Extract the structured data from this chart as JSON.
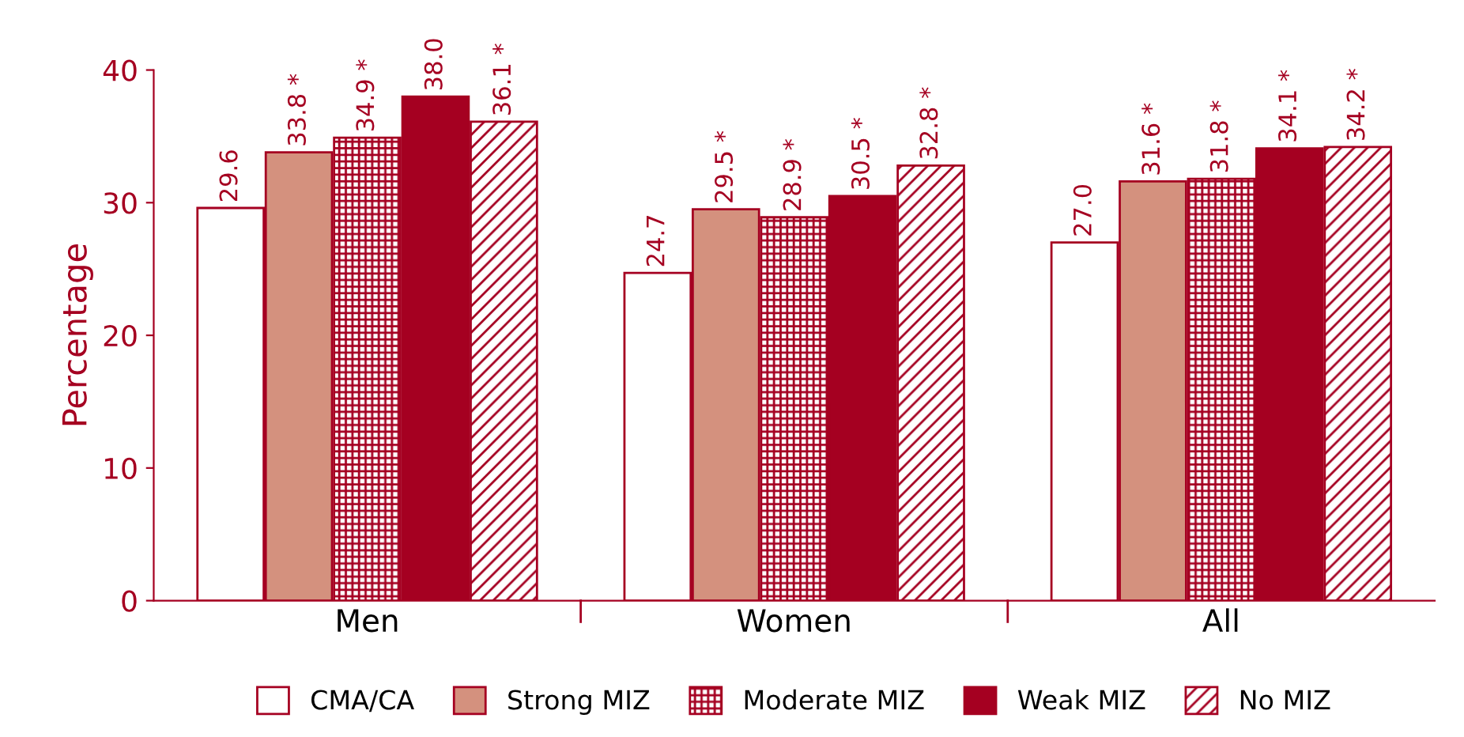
{
  "chart_data": {
    "type": "bar",
    "ylabel": "Percentage",
    "categories": [
      "Men",
      "Women",
      "All"
    ],
    "ylim": [
      0,
      40
    ],
    "yticks": [
      0,
      10,
      20,
      30,
      40
    ],
    "grid": false,
    "legend": "bottom",
    "series": [
      {
        "name": "CMA/CA",
        "color": "#ffffff",
        "values": [
          29.6,
          24.7,
          27.0
        ],
        "value_labels": [
          "29.6",
          "24.7",
          "27.0"
        ]
      },
      {
        "name": "Strong MIZ",
        "color": "#d4917e",
        "values": [
          33.8,
          29.5,
          31.6
        ],
        "value_labels": [
          "33.8 *",
          "29.5 *",
          "31.6 *"
        ]
      },
      {
        "name": "Moderate MIZ",
        "color": "#a50021",
        "values": [
          34.9,
          28.9,
          31.8
        ],
        "value_labels": [
          "34.9 *",
          "28.9 *",
          "31.8 *"
        ]
      },
      {
        "name": "Weak MIZ",
        "color": "#a50021",
        "values": [
          38.0,
          30.5,
          34.1
        ],
        "value_labels": [
          "38.0",
          "30.5 *",
          "34.1 *"
        ]
      },
      {
        "name": "No MIZ",
        "color": "#a50021",
        "values": [
          36.1,
          32.8,
          34.2
        ],
        "value_labels": [
          "36.1 *",
          "32.8 *",
          "34.2 *"
        ]
      }
    ]
  }
}
